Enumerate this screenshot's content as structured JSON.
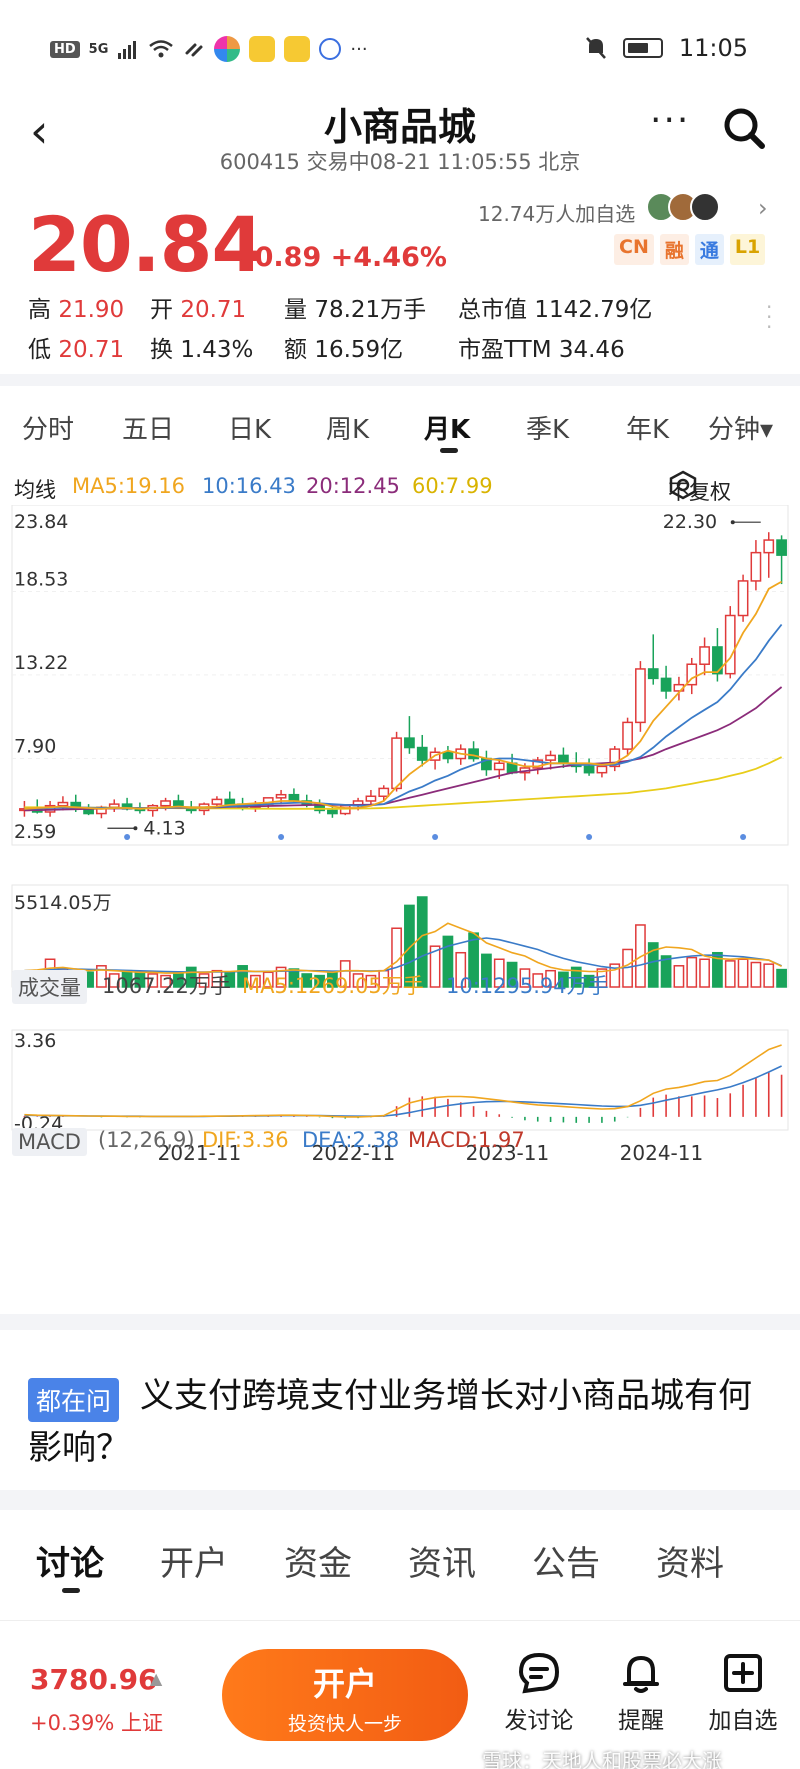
{
  "status_bar": {
    "network_badge": "HD",
    "network_type": "5G",
    "more": "···",
    "time": "11:05"
  },
  "header": {
    "back": "‹",
    "title": "小商品城",
    "subtitle": "600415 交易中08-21 11:05:55 北京",
    "more": "···"
  },
  "quote": {
    "price": "20.84",
    "change": "+0.89 +4.46%",
    "followers": "12.74万人加自选",
    "tags": [
      {
        "text": "CN",
        "color": "#e8742e",
        "bg": "#fdeee4"
      },
      {
        "text": "融",
        "color": "#e8742e",
        "bg": "#fdeee4"
      },
      {
        "text": "通",
        "color": "#3a7be0",
        "bg": "#e6f0fc"
      },
      {
        "text": "L1",
        "color": "#d9a300",
        "bg": "#fdf5d8"
      }
    ],
    "stats": {
      "high_label": "高",
      "high_value": "21.90",
      "open_label": "开",
      "open_value": "20.71",
      "volume_label": "量",
      "volume_value": "78.21万手",
      "mcap_label": "总市值",
      "mcap_value": "1142.79亿",
      "low_label": "低",
      "low_value": "20.71",
      "turnover_label": "换",
      "turnover_value": "1.43%",
      "amount_label": "额",
      "amount_value": "16.59亿",
      "pe_label": "市盈TTM",
      "pe_value": "34.46"
    }
  },
  "period_tabs": [
    {
      "label": "分时",
      "active": false
    },
    {
      "label": "五日",
      "active": false
    },
    {
      "label": "日K",
      "active": false
    },
    {
      "label": "周K",
      "active": false
    },
    {
      "label": "月K",
      "active": true
    },
    {
      "label": "季K",
      "active": false
    },
    {
      "label": "年K",
      "active": false
    },
    {
      "label": "分钟▾",
      "active": false
    }
  ],
  "ma_line": {
    "label": "均线",
    "ma5": "MA5:19.16",
    "ma10": "10:16.43",
    "ma20": "20:12.45",
    "ma60": "60:7.99",
    "adjust_label": "不复权"
  },
  "volume_header": {
    "label": "成交量",
    "vol": "1067.22万手",
    "ma5": "MA5:1269.05万手",
    "ma10": "10:1295.94万手"
  },
  "macd_header": {
    "label": "MACD",
    "params": "(12,26,9)",
    "dif": "DIF:3.36",
    "dea": "DEA:2.38",
    "macd": "MACD:1.97"
  },
  "chart_data": {
    "type": "candlestick",
    "period": "monthly",
    "y_axis_ticks": [
      "23.84",
      "18.53",
      "13.22",
      "7.90",
      "2.59"
    ],
    "ylim": [
      2.59,
      23.84
    ],
    "max_label": "22.30",
    "min_label": "4.13",
    "x_ticks": [
      "2021-11",
      "2022-11",
      "2023-11",
      "2024-11"
    ],
    "colors": {
      "up": "#e03a3a",
      "down": "#19a35a",
      "ma5": "#f0a61f",
      "ma10": "#3a7bc8",
      "ma20": "#8b2c7a",
      "ma60": "#e8cd1a"
    },
    "candles": [
      [
        4.6,
        5.2,
        4.2,
        4.7
      ],
      [
        4.7,
        5.3,
        4.4,
        4.5
      ],
      [
        4.5,
        5.2,
        4.2,
        4.9
      ],
      [
        4.9,
        5.5,
        4.6,
        5.1
      ],
      [
        5.1,
        5.6,
        4.5,
        4.7
      ],
      [
        4.7,
        5.0,
        4.3,
        4.4
      ],
      [
        4.4,
        4.9,
        4.1,
        4.8
      ],
      [
        4.8,
        5.3,
        4.5,
        5.0
      ],
      [
        5.0,
        5.4,
        4.6,
        4.7
      ],
      [
        4.7,
        5.1,
        4.4,
        4.6
      ],
      [
        4.6,
        5.0,
        4.2,
        4.9
      ],
      [
        4.9,
        5.4,
        4.6,
        5.2
      ],
      [
        5.2,
        5.6,
        4.7,
        4.8
      ],
      [
        4.8,
        5.2,
        4.4,
        4.6
      ],
      [
        4.6,
        5.1,
        4.3,
        5.0
      ],
      [
        5.0,
        5.5,
        4.7,
        5.3
      ],
      [
        5.3,
        5.8,
        4.9,
        5.0
      ],
      [
        5.0,
        5.4,
        4.6,
        4.8
      ],
      [
        4.8,
        5.2,
        4.5,
        5.0
      ],
      [
        5.0,
        5.4,
        4.7,
        5.4
      ],
      [
        5.4,
        5.9,
        5.0,
        5.6
      ],
      [
        5.6,
        6.0,
        5.1,
        5.2
      ],
      [
        5.2,
        5.6,
        4.8,
        5.0
      ],
      [
        5.0,
        5.3,
        4.4,
        4.6
      ],
      [
        4.6,
        4.9,
        4.13,
        4.4
      ],
      [
        4.4,
        5.0,
        4.3,
        4.9
      ],
      [
        4.9,
        5.4,
        4.6,
        5.2
      ],
      [
        5.2,
        5.9,
        4.9,
        5.5
      ],
      [
        5.5,
        6.2,
        5.2,
        6.0
      ],
      [
        6.0,
        9.6,
        5.8,
        9.2
      ],
      [
        9.2,
        10.6,
        8.2,
        8.6
      ],
      [
        8.6,
        9.4,
        7.4,
        7.8
      ],
      [
        7.8,
        8.6,
        7.2,
        8.3
      ],
      [
        8.3,
        8.7,
        7.6,
        7.9
      ],
      [
        7.9,
        8.8,
        7.5,
        8.5
      ],
      [
        8.5,
        9.0,
        7.7,
        7.9
      ],
      [
        7.9,
        8.4,
        6.8,
        7.2
      ],
      [
        7.2,
        7.9,
        6.6,
        7.6
      ],
      [
        7.6,
        8.2,
        6.9,
        7.0
      ],
      [
        7.0,
        7.6,
        6.5,
        7.3
      ],
      [
        7.3,
        8.0,
        6.9,
        7.8
      ],
      [
        7.8,
        8.4,
        7.2,
        8.1
      ],
      [
        8.1,
        8.6,
        7.3,
        7.6
      ],
      [
        7.6,
        8.3,
        7.0,
        7.4
      ],
      [
        7.4,
        7.9,
        6.8,
        7.0
      ],
      [
        7.0,
        7.6,
        6.7,
        7.4
      ],
      [
        7.4,
        8.7,
        7.1,
        8.5
      ],
      [
        8.5,
        10.5,
        8.1,
        10.2
      ],
      [
        10.2,
        14.1,
        9.6,
        13.6
      ],
      [
        13.6,
        15.8,
        12.6,
        13.0
      ],
      [
        13.0,
        13.8,
        11.7,
        12.2
      ],
      [
        12.2,
        13.1,
        11.6,
        12.6
      ],
      [
        12.6,
        14.3,
        12.0,
        13.9
      ],
      [
        13.9,
        15.6,
        13.2,
        15.0
      ],
      [
        15.0,
        16.2,
        12.8,
        13.3
      ],
      [
        13.3,
        17.6,
        13.0,
        17.0
      ],
      [
        17.0,
        19.6,
        16.6,
        19.2
      ],
      [
        19.2,
        21.8,
        18.6,
        21.0
      ],
      [
        21.0,
        22.3,
        19.4,
        21.8
      ],
      [
        21.8,
        22.1,
        19.0,
        20.84
      ]
    ],
    "ma5": [
      4.7,
      4.75,
      4.8,
      4.85,
      4.8,
      4.75,
      4.7,
      4.75,
      4.75,
      4.7,
      4.75,
      4.8,
      4.85,
      4.8,
      4.8,
      4.85,
      4.95,
      5.0,
      5.05,
      5.1,
      5.2,
      5.2,
      5.15,
      5.05,
      4.85,
      4.75,
      4.75,
      4.9,
      5.2,
      6.1,
      6.9,
      7.5,
      8.1,
      8.4,
      8.2,
      8.1,
      7.9,
      7.8,
      7.6,
      7.4,
      7.4,
      7.6,
      7.6,
      7.6,
      7.6,
      7.5,
      7.6,
      8.1,
      9.0,
      10.3,
      11.2,
      12.1,
      13.0,
      13.4,
      13.4,
      14.3,
      15.9,
      17.1,
      18.7,
      19.16
    ],
    "ma10": [
      4.7,
      4.72,
      4.75,
      4.78,
      4.8,
      4.78,
      4.76,
      4.75,
      4.75,
      4.74,
      4.75,
      4.77,
      4.8,
      4.8,
      4.8,
      4.82,
      4.86,
      4.9,
      4.95,
      5.0,
      5.05,
      5.08,
      5.1,
      5.05,
      5.0,
      4.95,
      4.9,
      4.92,
      5.0,
      5.4,
      5.8,
      6.1,
      6.5,
      6.8,
      7.2,
      7.5,
      7.8,
      7.9,
      7.9,
      7.8,
      7.7,
      7.6,
      7.6,
      7.5,
      7.5,
      7.5,
      7.5,
      7.7,
      8.0,
      8.6,
      9.3,
      9.9,
      10.5,
      11.0,
      11.5,
      12.3,
      13.3,
      14.2,
      15.4,
      16.43
    ],
    "ma20": [
      4.6,
      4.62,
      4.64,
      4.66,
      4.68,
      4.7,
      4.71,
      4.72,
      4.73,
      4.74,
      4.75,
      4.76,
      4.77,
      4.78,
      4.79,
      4.8,
      4.82,
      4.84,
      4.86,
      4.88,
      4.9,
      4.92,
      4.94,
      4.95,
      4.95,
      4.95,
      4.95,
      4.96,
      5.0,
      5.2,
      5.4,
      5.6,
      5.8,
      6.0,
      6.2,
      6.4,
      6.6,
      6.8,
      7.0,
      7.1,
      7.2,
      7.3,
      7.4,
      7.5,
      7.55,
      7.6,
      7.65,
      7.75,
      7.9,
      8.15,
      8.5,
      8.8,
      9.1,
      9.4,
      9.7,
      10.1,
      10.6,
      11.1,
      11.8,
      12.45
    ],
    "ma60": [
      4.8,
      4.8,
      4.79,
      4.79,
      4.78,
      4.78,
      4.77,
      4.77,
      4.76,
      4.76,
      4.75,
      4.75,
      4.74,
      4.74,
      4.73,
      4.73,
      4.72,
      4.72,
      4.71,
      4.71,
      4.7,
      4.7,
      4.7,
      4.7,
      4.7,
      4.71,
      4.72,
      4.73,
      4.75,
      4.8,
      4.85,
      4.9,
      4.95,
      5.0,
      5.05,
      5.1,
      5.15,
      5.2,
      5.25,
      5.3,
      5.35,
      5.4,
      5.45,
      5.5,
      5.55,
      5.6,
      5.65,
      5.7,
      5.8,
      5.9,
      6.0,
      6.15,
      6.3,
      6.45,
      6.6,
      6.8,
      7.0,
      7.25,
      7.6,
      7.99
    ],
    "volume": {
      "ymax_label": "5514.05万",
      "ymax": 5514.05,
      "values": [
        950,
        800,
        1700,
        1100,
        700,
        900,
        1300,
        800,
        1000,
        900,
        800,
        700,
        900,
        1200,
        800,
        1000,
        900,
        1300,
        700,
        900,
        1200,
        1100,
        800,
        700,
        900,
        1600,
        800,
        700,
        1000,
        3600,
        5000,
        5514,
        2500,
        3100,
        2100,
        3300,
        2000,
        1700,
        1500,
        1100,
        800,
        1000,
        900,
        1200,
        700,
        1100,
        1400,
        2300,
        3800,
        2700,
        1900,
        1300,
        1800,
        1700,
        2100,
        1600,
        1700,
        1500,
        1400,
        1067
      ],
      "ma5": [
        1000,
        1050,
        1150,
        1200,
        1100,
        1000,
        1050,
        1000,
        950,
        900,
        900,
        850,
        850,
        900,
        900,
        950,
        950,
        1000,
        950,
        950,
        1000,
        1050,
        1000,
        950,
        900,
        1000,
        1000,
        950,
        1000,
        1550,
        2400,
        3150,
        3400,
        3900,
        3600,
        3300,
        2700,
        2400,
        2100,
        1900,
        1500,
        1200,
        1050,
        1000,
        950,
        950,
        1050,
        1350,
        1850,
        2250,
        2450,
        2400,
        2300,
        1900,
        1750,
        1700,
        1750,
        1700,
        1650,
        1269
      ],
      "ma10": [
        1000,
        1020,
        1060,
        1100,
        1100,
        1080,
        1060,
        1040,
        1020,
        990,
        970,
        950,
        930,
        920,
        910,
        920,
        930,
        950,
        950,
        960,
        970,
        990,
        1000,
        990,
        970,
        980,
        990,
        980,
        990,
        1200,
        1500,
        1900,
        2200,
        2500,
        2700,
        2900,
        3000,
        2900,
        2700,
        2500,
        2300,
        2000,
        1750,
        1550,
        1400,
        1250,
        1150,
        1200,
        1350,
        1550,
        1700,
        1800,
        1900,
        1950,
        1950,
        1900,
        1850,
        1750,
        1650,
        1296
      ]
    },
    "macd": {
      "ylim": [
        -0.24,
        3.36
      ],
      "y_axis_ticks": [
        "3.36",
        "-0.24"
      ],
      "dif": [
        0.1,
        0.08,
        0.07,
        0.06,
        0.05,
        0.04,
        0.03,
        0.03,
        0.02,
        0.02,
        0.02,
        0.02,
        0.02,
        0.02,
        0.03,
        0.03,
        0.04,
        0.05,
        0.06,
        0.07,
        0.08,
        0.08,
        0.07,
        0.05,
        0.02,
        0.0,
        0.0,
        0.02,
        0.06,
        0.35,
        0.65,
        0.8,
        0.9,
        0.95,
        0.95,
        0.92,
        0.85,
        0.78,
        0.7,
        0.62,
        0.56,
        0.52,
        0.48,
        0.44,
        0.4,
        0.37,
        0.38,
        0.48,
        0.75,
        1.1,
        1.3,
        1.38,
        1.5,
        1.65,
        1.7,
        1.95,
        2.35,
        2.75,
        3.15,
        3.36
      ],
      "dea": [
        0.08,
        0.07,
        0.06,
        0.05,
        0.05,
        0.04,
        0.04,
        0.03,
        0.03,
        0.03,
        0.02,
        0.02,
        0.02,
        0.02,
        0.02,
        0.03,
        0.03,
        0.04,
        0.04,
        0.05,
        0.06,
        0.06,
        0.06,
        0.06,
        0.05,
        0.04,
        0.03,
        0.03,
        0.04,
        0.1,
        0.2,
        0.32,
        0.43,
        0.53,
        0.61,
        0.67,
        0.71,
        0.72,
        0.72,
        0.7,
        0.67,
        0.64,
        0.61,
        0.58,
        0.54,
        0.51,
        0.49,
        0.49,
        0.54,
        0.65,
        0.78,
        0.9,
        1.02,
        1.15,
        1.26,
        1.4,
        1.6,
        1.83,
        2.1,
        2.38
      ],
      "hist": [
        0.04,
        0.02,
        0.02,
        0.02,
        0.0,
        0.0,
        -0.02,
        0.0,
        -0.02,
        -0.02,
        0.0,
        0.0,
        0.0,
        0.0,
        0.02,
        0.0,
        0.02,
        0.02,
        0.04,
        0.04,
        0.04,
        0.04,
        0.02,
        -0.02,
        -0.06,
        -0.08,
        -0.06,
        -0.02,
        0.04,
        0.5,
        0.9,
        0.96,
        0.94,
        0.84,
        0.68,
        0.5,
        0.28,
        0.12,
        -0.04,
        -0.16,
        -0.22,
        -0.24,
        -0.26,
        -0.28,
        -0.28,
        -0.28,
        -0.22,
        -0.02,
        0.42,
        0.9,
        1.04,
        0.96,
        0.96,
        1.0,
        0.88,
        1.1,
        1.5,
        1.84,
        2.1,
        1.97
      ]
    }
  },
  "question": {
    "badge": "都在问",
    "text": "义支付跨境支付业务增长对小商品城有何影响？"
  },
  "bottom_tabs": [
    {
      "label": "讨论",
      "active": true
    },
    {
      "label": "开户",
      "active": false
    },
    {
      "label": "资金",
      "active": false
    },
    {
      "label": "资讯",
      "active": false
    },
    {
      "label": "公告",
      "active": false
    },
    {
      "label": "资料",
      "active": false
    }
  ],
  "footer": {
    "index_value": "3780.96",
    "index_change": "+0.39% 上证",
    "open_title": "开户",
    "open_sub": "投资快人一步",
    "post_label": "发讨论",
    "remind_label": "提醒",
    "add_label": "加自选",
    "watermark": "雪球：天地人和股票必大涨"
  }
}
